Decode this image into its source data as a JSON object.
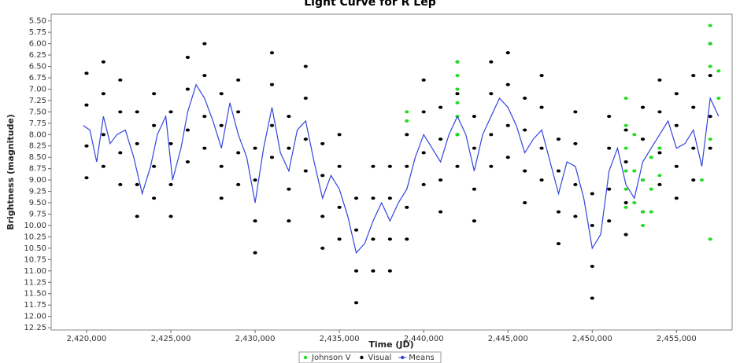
{
  "chart_data": {
    "type": "scatter",
    "title": "Light Curve for R Lep",
    "x_label": "Time (JD)",
    "y_label": "Brightness (magnitude)",
    "xlim": [
      2417900,
      2458300
    ],
    "ylim": [
      5.35,
      12.3
    ],
    "y_inverted": true,
    "legend": "bottom",
    "xticks": [
      {
        "value": 2420000,
        "label": "2,420,000"
      },
      {
        "value": 2425000,
        "label": "2,425,000"
      },
      {
        "value": 2430000,
        "label": "2,430,000"
      },
      {
        "value": 2435000,
        "label": "2,435,000"
      },
      {
        "value": 2440000,
        "label": "2,440,000"
      },
      {
        "value": 2445000,
        "label": "2,445,000"
      },
      {
        "value": 2450000,
        "label": "2,450,000"
      },
      {
        "value": 2455000,
        "label": "2,455,000"
      }
    ],
    "yticks": [
      {
        "value": 5.5,
        "label": "5.50"
      },
      {
        "value": 5.75,
        "label": "5.75"
      },
      {
        "value": 6,
        "label": "6.00"
      },
      {
        "value": 6.25,
        "label": "6.25"
      },
      {
        "value": 6.5,
        "label": "6.50"
      },
      {
        "value": 6.75,
        "label": "6.75"
      },
      {
        "value": 7,
        "label": "7.00"
      },
      {
        "value": 7.25,
        "label": "7.25"
      },
      {
        "value": 7.5,
        "label": "7.50"
      },
      {
        "value": 7.75,
        "label": "7.75"
      },
      {
        "value": 8,
        "label": "8.00"
      },
      {
        "value": 8.25,
        "label": "8.25"
      },
      {
        "value": 8.5,
        "label": "8.50"
      },
      {
        "value": 8.75,
        "label": "8.75"
      },
      {
        "value": 9,
        "label": "9.00"
      },
      {
        "value": 9.25,
        "label": "9.25"
      },
      {
        "value": 9.5,
        "label": "9.50"
      },
      {
        "value": 9.75,
        "label": "9.75"
      },
      {
        "value": 10,
        "label": "10.00"
      },
      {
        "value": 10.25,
        "label": "10.25"
      },
      {
        "value": 10.5,
        "label": "10.50"
      },
      {
        "value": 10.75,
        "label": "10.75"
      },
      {
        "value": 11,
        "label": "11.00"
      },
      {
        "value": 11.25,
        "label": "11.25"
      },
      {
        "value": 11.5,
        "label": "11.50"
      },
      {
        "value": 11.75,
        "label": "11.75"
      },
      {
        "value": 12,
        "label": "12.00"
      },
      {
        "value": 12.25,
        "label": "12.25"
      }
    ],
    "series": [
      {
        "name": "Johnson V",
        "color": "#22dd22",
        "mode": "markers",
        "x": [
          2439000,
          2439000,
          2442000,
          2442000,
          2442000,
          2442000,
          2442000,
          2442000,
          2452000,
          2452000,
          2452000,
          2452000,
          2452000,
          2452000,
          2452500,
          2452500,
          2452500,
          2453000,
          2453000,
          2453000,
          2453500,
          2453500,
          2453500,
          2454000,
          2454000,
          2456500,
          2457000,
          2457000,
          2457000,
          2457000,
          2457000,
          2457500,
          2457500
        ],
        "values": [
          7.5,
          7.7,
          6.4,
          6.7,
          7.0,
          7.3,
          7.6,
          8.0,
          7.2,
          7.8,
          8.3,
          8.8,
          9.2,
          9.6,
          8.0,
          8.8,
          9.5,
          9.0,
          9.7,
          10.0,
          8.5,
          9.2,
          9.7,
          8.3,
          8.9,
          9.0,
          5.6,
          6.0,
          6.5,
          8.1,
          10.3,
          6.6,
          7.2
        ]
      },
      {
        "name": "Visual",
        "color": "#000000",
        "mode": "markers",
        "x": [
          2420000,
          2420000,
          2420000,
          2420000,
          2421000,
          2421000,
          2421000,
          2421000,
          2422000,
          2422000,
          2422000,
          2422000,
          2423000,
          2423000,
          2423000,
          2423000,
          2424000,
          2424000,
          2424000,
          2424000,
          2425000,
          2425000,
          2425000,
          2425000,
          2426000,
          2426000,
          2426000,
          2426000,
          2427000,
          2427000,
          2427000,
          2427000,
          2428000,
          2428000,
          2428000,
          2428000,
          2429000,
          2429000,
          2429000,
          2429000,
          2430000,
          2430000,
          2430000,
          2430000,
          2431000,
          2431000,
          2431000,
          2431000,
          2432000,
          2432000,
          2432000,
          2432000,
          2433000,
          2433000,
          2433000,
          2433000,
          2434000,
          2434000,
          2434000,
          2434000,
          2435000,
          2435000,
          2435000,
          2435000,
          2436000,
          2436000,
          2436000,
          2436000,
          2437000,
          2437000,
          2437000,
          2437000,
          2438000,
          2438000,
          2438000,
          2438000,
          2439000,
          2439000,
          2439000,
          2439000,
          2440000,
          2440000,
          2440000,
          2440000,
          2441000,
          2441000,
          2441000,
          2441000,
          2442000,
          2442000,
          2442000,
          2442000,
          2443000,
          2443000,
          2443000,
          2443000,
          2444000,
          2444000,
          2444000,
          2444000,
          2445000,
          2445000,
          2445000,
          2445000,
          2446000,
          2446000,
          2446000,
          2446000,
          2447000,
          2447000,
          2447000,
          2447000,
          2448000,
          2448000,
          2448000,
          2448000,
          2449000,
          2449000,
          2449000,
          2449000,
          2450000,
          2450000,
          2450000,
          2450000,
          2451000,
          2451000,
          2451000,
          2451000,
          2452000,
          2452000,
          2452000,
          2452000,
          2453000,
          2453000,
          2453000,
          2453000,
          2454000,
          2454000,
          2454000,
          2454000,
          2455000,
          2455000,
          2455000,
          2455000,
          2456000,
          2456000,
          2456000,
          2456000,
          2457000,
          2457000,
          2457000,
          2457000
        ],
        "values": [
          6.65,
          7.35,
          8.25,
          8.95,
          6.4,
          7.1,
          8.0,
          8.7,
          6.8,
          7.5,
          8.4,
          9.1,
          7.5,
          8.2,
          9.1,
          9.8,
          7.1,
          7.8,
          8.7,
          9.4,
          7.5,
          8.2,
          9.1,
          9.8,
          6.3,
          7.0,
          7.9,
          8.6,
          6.0,
          6.7,
          7.6,
          8.3,
          7.1,
          7.8,
          8.7,
          9.4,
          6.8,
          7.5,
          8.4,
          9.1,
          8.3,
          9.0,
          9.9,
          10.6,
          6.2,
          6.9,
          7.8,
          8.5,
          7.6,
          8.3,
          9.2,
          9.9,
          6.5,
          7.2,
          8.1,
          8.8,
          8.2,
          8.9,
          9.8,
          10.5,
          8.0,
          8.7,
          9.6,
          10.3,
          9.4,
          10.1,
          11.0,
          11.7,
          8.7,
          9.4,
          10.3,
          11.0,
          8.7,
          9.4,
          10.3,
          11.0,
          8.0,
          8.7,
          9.6,
          10.3,
          6.8,
          7.5,
          8.4,
          9.1,
          7.4,
          8.1,
          9.0,
          9.7,
          6.4,
          7.1,
          8.0,
          8.7,
          7.6,
          8.3,
          9.2,
          9.9,
          6.4,
          7.1,
          8.0,
          8.7,
          6.2,
          6.9,
          7.8,
          8.5,
          7.2,
          7.9,
          8.8,
          9.5,
          6.7,
          7.4,
          8.3,
          9.0,
          8.1,
          8.8,
          9.7,
          10.4,
          7.5,
          8.2,
          9.1,
          9.8,
          9.3,
          10.0,
          10.9,
          11.6,
          7.6,
          8.3,
          9.2,
          9.9,
          7.9,
          8.6,
          9.5,
          10.2,
          7.4,
          8.1,
          9.0,
          9.7,
          6.8,
          7.5,
          8.4,
          9.1,
          7.1,
          7.8,
          8.7,
          9.4,
          6.7,
          7.4,
          8.3,
          9.0,
          6.0,
          6.7,
          7.6,
          8.3
        ]
      },
      {
        "name": "Means",
        "color": "#3344dd",
        "mode": "lines",
        "x": [
          2419800,
          2420200,
          2420600,
          2421000,
          2421400,
          2421800,
          2422300,
          2422800,
          2423300,
          2423800,
          2424200,
          2424700,
          2425100,
          2425600,
          2426000,
          2426500,
          2427000,
          2427500,
          2428000,
          2428500,
          2429000,
          2429500,
          2430000,
          2430500,
          2431000,
          2431500,
          2432000,
          2432500,
          2433000,
          2433500,
          2434000,
          2434500,
          2435000,
          2435500,
          2436000,
          2436500,
          2437000,
          2437500,
          2438000,
          2438500,
          2439000,
          2439500,
          2440000,
          2440500,
          2441000,
          2441500,
          2442000,
          2442500,
          2443000,
          2443500,
          2444000,
          2444500,
          2445000,
          2445500,
          2446000,
          2446500,
          2447000,
          2447500,
          2448000,
          2448500,
          2449000,
          2449500,
          2450000,
          2450500,
          2451000,
          2451500,
          2452000,
          2452500,
          2453000,
          2453500,
          2454000,
          2454500,
          2455000,
          2455500,
          2456000,
          2456500,
          2457000,
          2457500
        ],
        "values": [
          7.8,
          7.9,
          8.6,
          7.6,
          8.2,
          8.0,
          7.9,
          8.5,
          9.3,
          8.7,
          8.0,
          7.6,
          9.0,
          8.3,
          7.5,
          6.9,
          7.2,
          7.7,
          8.3,
          7.3,
          8.0,
          8.5,
          9.5,
          8.3,
          7.4,
          8.4,
          8.8,
          7.9,
          7.7,
          8.6,
          9.4,
          8.9,
          9.2,
          9.8,
          10.6,
          10.4,
          9.9,
          9.5,
          9.9,
          9.5,
          9.2,
          8.5,
          8.0,
          8.3,
          8.6,
          8.0,
          7.6,
          8.0,
          8.8,
          8.0,
          7.6,
          7.2,
          7.4,
          7.8,
          8.4,
          8.1,
          7.9,
          8.6,
          9.3,
          8.6,
          8.7,
          9.4,
          10.5,
          10.2,
          8.8,
          8.3,
          9.1,
          9.4,
          8.6,
          8.3,
          8.0,
          7.7,
          8.3,
          8.2,
          7.9,
          8.7,
          7.2,
          7.6
        ]
      }
    ]
  }
}
